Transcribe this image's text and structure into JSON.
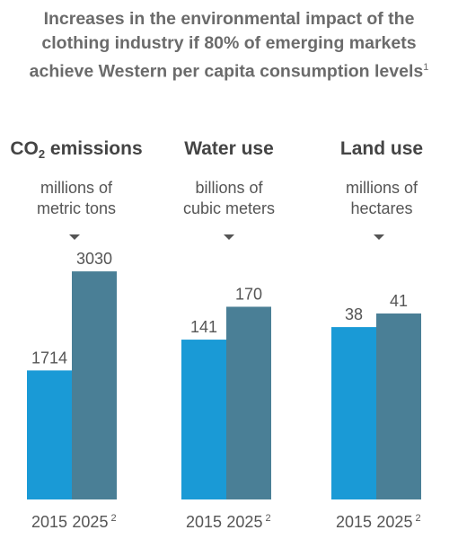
{
  "title": {
    "line1": "Increases in the environmental impact of the",
    "line2": "clothing industry if 80% of emerging markets",
    "line3": "achieve Western per capita consumption levels",
    "footnote": "1"
  },
  "colors": {
    "year_2015": "#1a9ad6",
    "year_2025": "#4a7f96",
    "text": "#555555"
  },
  "chart_data": [
    {
      "type": "bar",
      "title": "CO2 emissions",
      "ylabel": "millions of metric tons",
      "categories": [
        "2015",
        "2025"
      ],
      "category_superscripts": [
        "",
        "2"
      ],
      "values": [
        1714,
        3030
      ]
    },
    {
      "type": "bar",
      "title": "Water use",
      "ylabel": "billions of cubic meters",
      "categories": [
        "2015",
        "2025"
      ],
      "category_superscripts": [
        "",
        "2"
      ],
      "values": [
        141,
        170
      ]
    },
    {
      "type": "bar",
      "title": "Land use",
      "ylabel": "millions of hectares",
      "categories": [
        "2015",
        "2025"
      ],
      "category_superscripts": [
        "",
        "2"
      ],
      "values": [
        38,
        41
      ]
    }
  ],
  "panels": [
    {
      "title_pre": "CO",
      "title_sub": "2",
      "title_post": " emissions",
      "unit_line1": "millions of",
      "unit_line2": "metric tons"
    },
    {
      "title_pre": "Water use",
      "title_sub": "",
      "title_post": "",
      "unit_line1": "billions of",
      "unit_line2": "cubic meters"
    },
    {
      "title_pre": "Land use",
      "title_sub": "",
      "title_post": "",
      "unit_line1": "millions of",
      "unit_line2": "hectares"
    }
  ]
}
